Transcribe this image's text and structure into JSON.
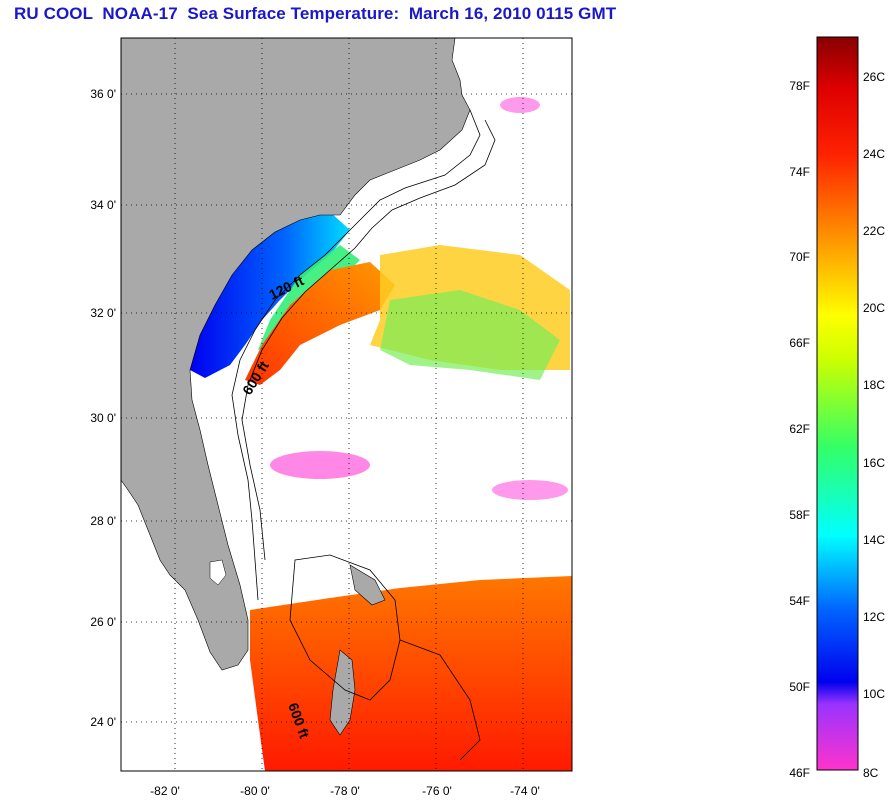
{
  "title": "RU COOL  NOAA-17  Sea Surface Temperature:  March 16, 2010 0115 GMT",
  "map": {
    "lat_ticks": [
      "36 0'",
      "34 0'",
      "32 0'",
      "30 0'",
      "28 0'",
      "26 0'",
      "24 0'"
    ],
    "lon_ticks": [
      "-82 0'",
      "-80 0'",
      "-78 0'",
      "-76 0'",
      "-74 0'"
    ],
    "contour_labels": [
      "120 ft",
      "600 ft",
      "600 ft"
    ],
    "extent": {
      "lon": [
        -83,
        -73
      ],
      "lat": [
        23,
        37
      ]
    }
  },
  "colorbar": {
    "f_labels": [
      "78F",
      "74F",
      "70F",
      "66F",
      "62F",
      "58F",
      "54F",
      "50F",
      "46F"
    ],
    "c_labels": [
      "26C",
      "24C",
      "22C",
      "20C",
      "18C",
      "16C",
      "14C",
      "12C",
      "10C",
      "8C"
    ]
  },
  "colors": {
    "title": "#1a18c8",
    "land": "#a9a9a9",
    "ocean": "#ffffff"
  }
}
